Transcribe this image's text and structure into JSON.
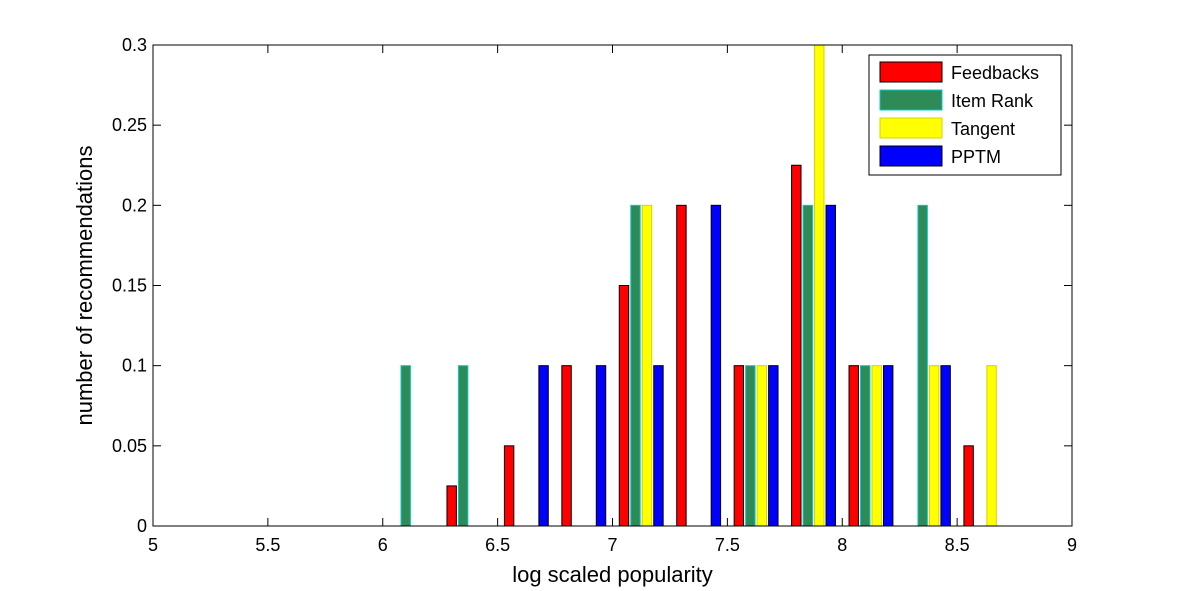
{
  "chart_data": {
    "type": "bar",
    "title": "",
    "xlabel": "log scaled popularity",
    "ylabel": "number of recommendations",
    "xlim": [
      5,
      9
    ],
    "ylim": [
      0,
      0.3
    ],
    "xticks": [
      "5",
      "5.5",
      "6",
      "6.5",
      "7",
      "7.5",
      "8",
      "8.5",
      "9"
    ],
    "yticks": [
      "0",
      "0.05",
      "0.1",
      "0.15",
      "0.2",
      "0.25",
      "0.3"
    ],
    "legend_position": "top-right",
    "bin_centers": [
      5.125,
      5.375,
      5.625,
      5.875,
      6.125,
      6.375,
      6.625,
      6.875,
      7.125,
      7.375,
      7.625,
      7.875,
      8.125,
      8.375,
      8.625,
      8.875
    ],
    "series": [
      {
        "name": "Feedbacks",
        "color": "#ff0000",
        "edge": "#000000",
        "values": [
          0,
          0,
          0,
          0,
          0,
          0.025,
          0.05,
          0.1,
          0.15,
          0.2,
          0.1,
          0.225,
          0.1,
          0,
          0.05,
          0
        ]
      },
      {
        "name": "Item Rank",
        "color": "#2e8b57",
        "edge": "#00cccc",
        "values": [
          0,
          0,
          0,
          0,
          0.1,
          0.1,
          0,
          0,
          0.2,
          0,
          0.1,
          0.2,
          0.1,
          0.2,
          0,
          0
        ]
      },
      {
        "name": "Tangent",
        "color": "#ffff00",
        "edge": "#d4d400",
        "values": [
          0,
          0,
          0,
          0,
          0,
          0,
          0,
          0,
          0.2,
          0,
          0.1,
          0.3,
          0.1,
          0.1,
          0.1,
          0
        ]
      },
      {
        "name": "PPTM",
        "color": "#0000ff",
        "edge": "#000000",
        "values": [
          0,
          0,
          0,
          0,
          0,
          0,
          0.1,
          0.1,
          0.1,
          0.2,
          0.1,
          0.2,
          0.1,
          0.1,
          0,
          0
        ]
      }
    ]
  }
}
